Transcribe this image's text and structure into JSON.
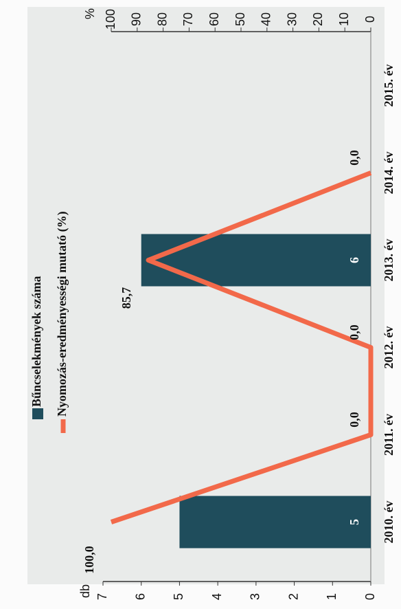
{
  "chart_data": {
    "type": "bar-line",
    "categories": [
      "2010. év",
      "2011. év",
      "2012. év",
      "2013. év",
      "2014. év",
      "2015. év"
    ],
    "series": [
      {
        "name": "Bűncselekmények száma",
        "type": "bar",
        "color": "#1f4d5c",
        "values": [
          5,
          null,
          null,
          6,
          null,
          null
        ]
      },
      {
        "name": "Nyomozás-eredményességi mutató (%)",
        "type": "line",
        "axis": "y2",
        "color": "#f2694a",
        "values": [
          100,
          0,
          0,
          85.7,
          0,
          null
        ],
        "value_labels": [
          "100,0",
          "0,0",
          "0,0",
          "85,7",
          "0,0",
          null
        ]
      }
    ],
    "ylabel": "db",
    "ylim": [
      0,
      7
    ],
    "yticks": [
      0,
      1,
      2,
      3,
      4,
      5,
      6,
      7
    ],
    "y2label": "%",
    "y2lim": [
      0,
      100
    ],
    "y2ticks": [
      0,
      10,
      20,
      30,
      40,
      50,
      60,
      70,
      80,
      90,
      100
    ]
  }
}
